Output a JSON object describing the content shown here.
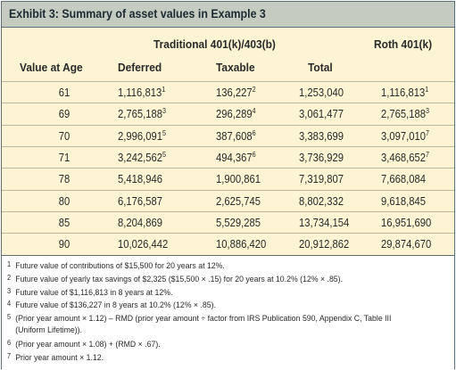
{
  "title": "Exhibit 3: Summary of asset values in Example 3",
  "groups": {
    "traditional": "Traditional 401(k)/403(b)",
    "roth": "Roth 401(k)"
  },
  "columns": {
    "age": "Value at Age",
    "deferred": "Deferred",
    "taxable": "Taxable",
    "total": "Total"
  },
  "rows": [
    {
      "age": "61",
      "deferred": "1,116,813",
      "deferred_note": "1",
      "taxable": "136,227",
      "taxable_note": "2",
      "total": "1,253,040",
      "roth": "1,116,813",
      "roth_note": "1"
    },
    {
      "age": "69",
      "deferred": "2,765,188",
      "deferred_note": "3",
      "taxable": "296,289",
      "taxable_note": "4",
      "total": "3,061,477",
      "roth": "2,765,188",
      "roth_note": "3"
    },
    {
      "age": "70",
      "deferred": "2,996,091",
      "deferred_note": "5",
      "taxable": "387,608",
      "taxable_note": "6",
      "total": "3,383,699",
      "roth": "3,097,010",
      "roth_note": "7"
    },
    {
      "age": "71",
      "deferred": "3,242,562",
      "deferred_note": "5",
      "taxable": "494,367",
      "taxable_note": "6",
      "total": "3,736,929",
      "roth": "3,468,652",
      "roth_note": "7"
    },
    {
      "age": "78",
      "deferred": "5,418,946",
      "deferred_note": "",
      "taxable": "1,900,861",
      "taxable_note": "",
      "total": "7,319,807",
      "roth": "7,668,084",
      "roth_note": ""
    },
    {
      "age": "80",
      "deferred": "6,176,587",
      "deferred_note": "",
      "taxable": "2,625,745",
      "taxable_note": "",
      "total": "8,802,332",
      "roth": "9,618,845",
      "roth_note": ""
    },
    {
      "age": "85",
      "deferred": "8,204,869",
      "deferred_note": "",
      "taxable": "5,529,285",
      "taxable_note": "",
      "total": "13,734,154",
      "roth": "16,951,690",
      "roth_note": ""
    },
    {
      "age": "90",
      "deferred": "10,026,442",
      "deferred_note": "",
      "taxable": "10,886,420",
      "taxable_note": "",
      "total": "20,912,862",
      "roth": "29,874,670",
      "roth_note": ""
    }
  ],
  "footnotes": [
    {
      "mark": "1",
      "text": "Future value of contributions of $15,500 for 20 years at 12%."
    },
    {
      "mark": "2",
      "text": "Future value of yearly tax savings of $2,325 ($15,500 × .15) for 20 years at 10.2% (12% × .85)."
    },
    {
      "mark": "3",
      "text": "Future value of $1,116,813 in 8 years at 12%."
    },
    {
      "mark": "4",
      "text": "Future value of $136,227 in 8 years at 10.2% (12% × .85)."
    },
    {
      "mark": "5",
      "text": "(Prior year amount × 1.12) – RMD (prior year amount ÷ factor from IRS Publication 590, Appendix C, Table III"
    },
    {
      "mark": "",
      "text": "(Uniform Lifetime))."
    },
    {
      "mark": "6",
      "text": "(Prior year amount × 1.08) + (RMD × .67)."
    },
    {
      "mark": "7",
      "text": "Prior year amount × 1.12."
    }
  ]
}
